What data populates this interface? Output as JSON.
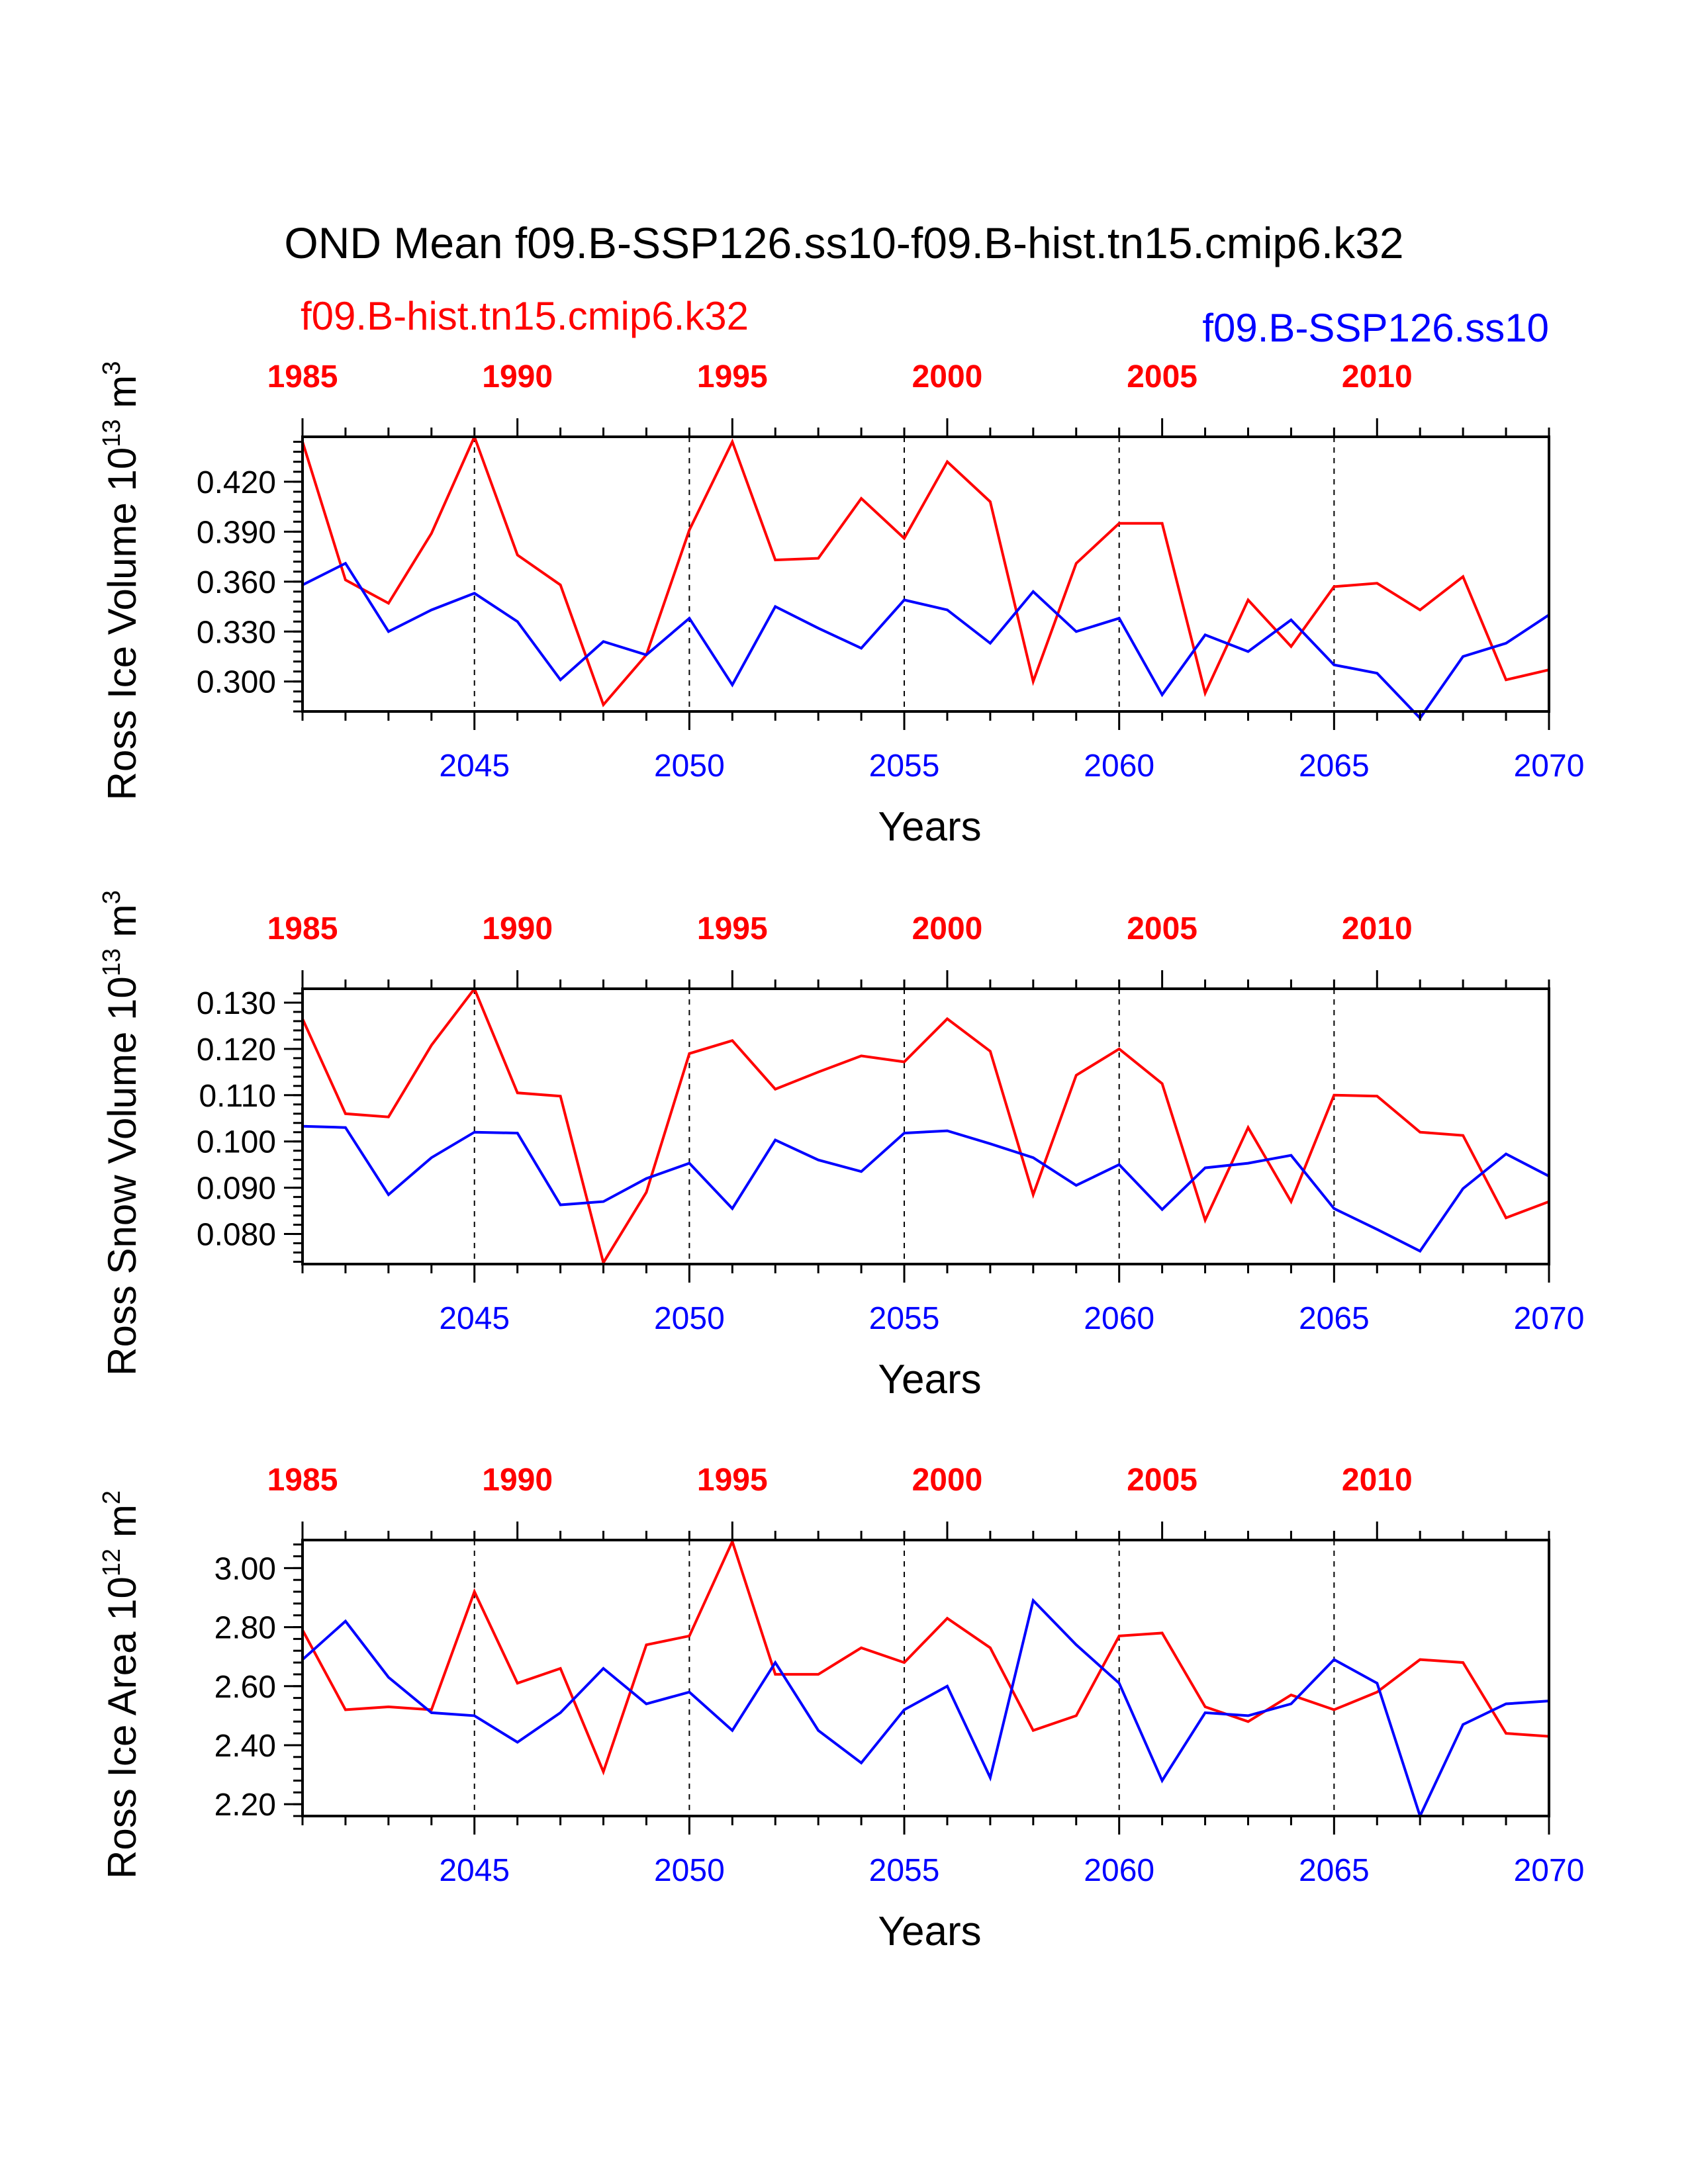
{
  "title": "OND Mean f09.B-SSP126.ss10-f09.B-hist.tn15.cmip6.k32",
  "legend": {
    "hist_label": "f09.B-hist.tn15.cmip6.k32",
    "ssp_label": "f09.B-SSP126.ss10"
  },
  "colors": {
    "hist": "#ff0000",
    "ssp": "#0000ff",
    "axis": "#000000"
  },
  "chart_data": [
    {
      "type": "line",
      "ylabel_text": "Ross Ice Volume 10",
      "ylabel_exp": "13",
      "ylabel_unit": " m",
      "ylabel_unit_exp": "3",
      "xlabel": "Years",
      "xlim_bottom": [
        2041,
        2070
      ],
      "xlim_top": [
        1985,
        2014
      ],
      "ylim": [
        0.282,
        0.447
      ],
      "yticks": [
        0.3,
        0.33,
        0.36,
        0.39,
        0.42
      ],
      "ytick_labels": [
        "0.300",
        "0.330",
        "0.360",
        "0.390",
        "0.420"
      ],
      "yminor_step": 0.006,
      "x_bottom_ticks": [
        2045,
        2050,
        2055,
        2060,
        2065,
        2070
      ],
      "x_bottom_labels": [
        "2045",
        "2050",
        "2055",
        "2060",
        "2065",
        "2070"
      ],
      "x_top_ticks": [
        1985,
        1990,
        1995,
        2000,
        2005,
        2010
      ],
      "x_top_labels": [
        "1985",
        "1990",
        "1995",
        "2000",
        "2005",
        "2010"
      ],
      "vgrid_dashed": [
        2045,
        2050,
        2055,
        2060,
        2065
      ],
      "x_bottom": [
        2041,
        2042,
        2043,
        2044,
        2045,
        2046,
        2047,
        2048,
        2049,
        2050,
        2051,
        2052,
        2053,
        2054,
        2055,
        2056,
        2057,
        2058,
        2059,
        2060,
        2061,
        2062,
        2063,
        2064,
        2065,
        2066,
        2067,
        2068,
        2069,
        2070
      ],
      "series": [
        {
          "name": "f09.B-hist.tn15.cmip6.k32",
          "key": "hist",
          "axis": "top",
          "values": [
            0.444,
            0.361,
            0.347,
            0.389,
            0.447,
            0.376,
            0.358,
            0.286,
            0.316,
            0.391,
            0.444,
            0.373,
            0.374,
            0.41,
            0.386,
            0.432,
            0.408,
            0.3,
            0.371,
            0.395,
            0.395,
            0.293,
            0.349,
            0.321,
            0.357,
            0.359,
            0.343,
            0.363,
            0.301,
            0.307
          ]
        },
        {
          "name": "f09.B-SSP126.ss10",
          "key": "ssp",
          "axis": "bottom",
          "values": [
            0.358,
            0.371,
            0.33,
            0.343,
            0.353,
            0.336,
            0.301,
            0.324,
            0.316,
            0.338,
            0.298,
            0.345,
            0.332,
            0.32,
            0.349,
            0.343,
            0.323,
            0.354,
            0.33,
            0.338,
            0.292,
            0.328,
            0.318,
            0.337,
            0.31,
            0.305,
            0.278,
            0.315,
            0.323,
            0.34
          ]
        }
      ]
    },
    {
      "type": "line",
      "ylabel_text": "Ross Snow Volume 10",
      "ylabel_exp": "13",
      "ylabel_unit": " m",
      "ylabel_unit_exp": "3",
      "xlabel": "Years",
      "xlim_bottom": [
        2041,
        2070
      ],
      "xlim_top": [
        1985,
        2014
      ],
      "ylim": [
        0.0735,
        0.133
      ],
      "yticks": [
        0.08,
        0.09,
        0.1,
        0.11,
        0.12,
        0.13
      ],
      "ytick_labels": [
        "0.080",
        "0.090",
        "0.100",
        "0.110",
        "0.120",
        "0.130"
      ],
      "yminor_step": 0.002,
      "x_bottom_ticks": [
        2045,
        2050,
        2055,
        2060,
        2065,
        2070
      ],
      "x_bottom_labels": [
        "2045",
        "2050",
        "2055",
        "2060",
        "2065",
        "2070"
      ],
      "x_top_ticks": [
        1985,
        1990,
        1995,
        2000,
        2005,
        2010
      ],
      "x_top_labels": [
        "1985",
        "1990",
        "1995",
        "2000",
        "2005",
        "2010"
      ],
      "vgrid_dashed": [
        2045,
        2050,
        2055,
        2060,
        2065
      ],
      "x_bottom": [
        2041,
        2042,
        2043,
        2044,
        2045,
        2046,
        2047,
        2048,
        2049,
        2050,
        2051,
        2052,
        2053,
        2054,
        2055,
        2056,
        2057,
        2058,
        2059,
        2060,
        2061,
        2062,
        2063,
        2064,
        2065,
        2066,
        2067,
        2068,
        2069,
        2070
      ],
      "series": [
        {
          "name": "f09.B-hist.tn15.cmip6.k32",
          "key": "hist",
          "axis": "top",
          "values": [
            0.1265,
            0.106,
            0.1053,
            0.1208,
            0.133,
            0.1105,
            0.1098,
            0.0738,
            0.089,
            0.119,
            0.1218,
            0.1113,
            0.115,
            0.1185,
            0.1172,
            0.1265,
            0.1195,
            0.0885,
            0.1143,
            0.12,
            0.1125,
            0.083,
            0.103,
            0.087,
            0.11,
            0.1098,
            0.102,
            0.1013,
            0.0835,
            0.087
          ]
        },
        {
          "name": "f09.B-SSP126.ss10",
          "key": "ssp",
          "axis": "bottom",
          "values": [
            0.1033,
            0.103,
            0.0885,
            0.0965,
            0.102,
            0.1018,
            0.0863,
            0.087,
            0.092,
            0.0953,
            0.0855,
            0.1003,
            0.096,
            0.0935,
            0.1018,
            0.1023,
            0.0995,
            0.0965,
            0.0905,
            0.095,
            0.0853,
            0.0943,
            0.0953,
            0.097,
            0.0855,
            0.081,
            0.0763,
            0.0898,
            0.0973,
            0.0925
          ]
        }
      ]
    },
    {
      "type": "line",
      "ylabel_text": "Ross Ice Area 10",
      "ylabel_exp": "12",
      "ylabel_unit": " m",
      "ylabel_unit_exp": "2",
      "xlabel": "Years",
      "xlim_bottom": [
        2041,
        2070
      ],
      "xlim_top": [
        1985,
        2014
      ],
      "ylim": [
        2.16,
        3.095
      ],
      "yticks": [
        2.2,
        2.4,
        2.6,
        2.8,
        3.0
      ],
      "ytick_labels": [
        "2.20",
        "2.40",
        "2.60",
        "2.80",
        "3.00"
      ],
      "yminor_step": 0.04,
      "x_bottom_ticks": [
        2045,
        2050,
        2055,
        2060,
        2065,
        2070
      ],
      "x_bottom_labels": [
        "2045",
        "2050",
        "2055",
        "2060",
        "2065",
        "2070"
      ],
      "x_top_ticks": [
        1985,
        1990,
        1995,
        2000,
        2005,
        2010
      ],
      "x_top_labels": [
        "1985",
        "1990",
        "1995",
        "2000",
        "2005",
        "2010"
      ],
      "vgrid_dashed": [
        2045,
        2050,
        2055,
        2060,
        2065
      ],
      "x_bottom": [
        2041,
        2042,
        2043,
        2044,
        2045,
        2046,
        2047,
        2048,
        2049,
        2050,
        2051,
        2052,
        2053,
        2054,
        2055,
        2056,
        2057,
        2058,
        2059,
        2060,
        2061,
        2062,
        2063,
        2064,
        2065,
        2066,
        2067,
        2068,
        2069,
        2070
      ],
      "series": [
        {
          "name": "f09.B-hist.tn15.cmip6.k32",
          "key": "hist",
          "axis": "top",
          "values": [
            2.79,
            2.52,
            2.53,
            2.52,
            2.92,
            2.61,
            2.66,
            2.31,
            2.74,
            2.77,
            3.09,
            2.64,
            2.64,
            2.73,
            2.68,
            2.83,
            2.73,
            2.45,
            2.5,
            2.77,
            2.78,
            2.53,
            2.48,
            2.57,
            2.52,
            2.58,
            2.69,
            2.68,
            2.44,
            2.43
          ]
        },
        {
          "name": "f09.B-SSP126.ss10",
          "key": "ssp",
          "axis": "bottom",
          "values": [
            2.69,
            2.82,
            2.63,
            2.51,
            2.5,
            2.41,
            2.51,
            2.66,
            2.54,
            2.58,
            2.45,
            2.68,
            2.45,
            2.34,
            2.52,
            2.6,
            2.29,
            2.89,
            2.74,
            2.61,
            2.28,
            2.51,
            2.5,
            2.54,
            2.69,
            2.61,
            2.16,
            2.47,
            2.54,
            2.55
          ]
        }
      ]
    }
  ]
}
